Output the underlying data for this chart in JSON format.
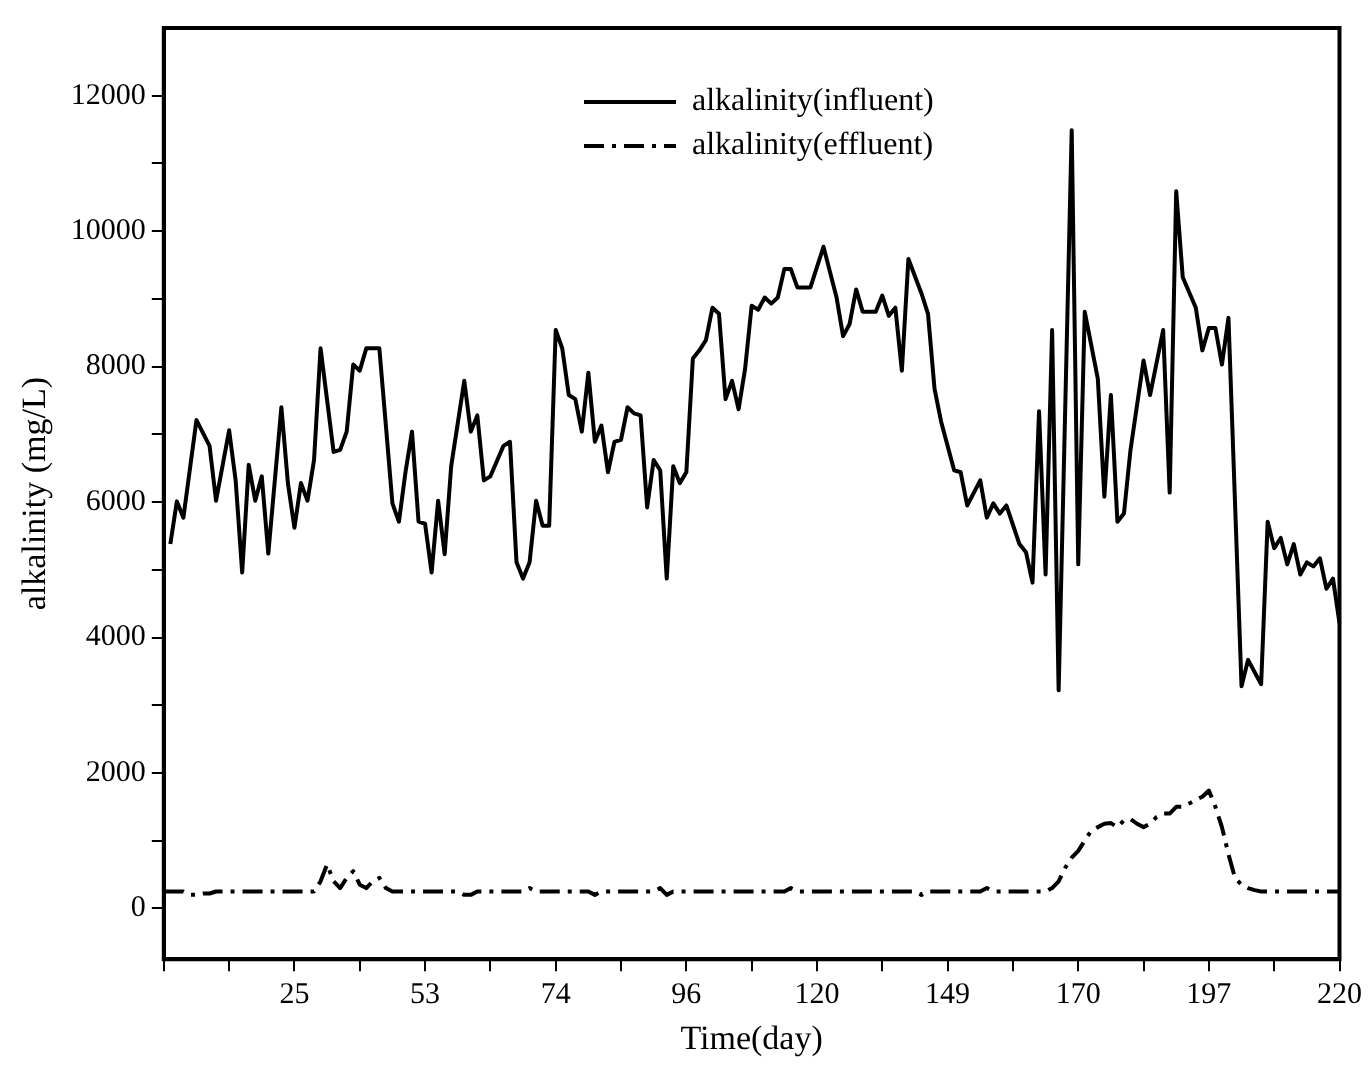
{
  "chart_data": {
    "type": "line",
    "xlabel": "Time(day)",
    "ylabel": "alkalinity (mg/L)",
    "categories": [
      null,
      null,
      null,
      null,
      null,
      null,
      null,
      null,
      null,
      null,
      null,
      null,
      null,
      null,
      null,
      null,
      null,
      null,
      null,
      null,
      "25",
      null,
      null,
      null,
      null,
      null,
      null,
      null,
      null,
      null,
      null,
      null,
      null,
      null,
      null,
      null,
      null,
      null,
      null,
      null,
      "53",
      null,
      null,
      null,
      null,
      null,
      null,
      null,
      null,
      null,
      null,
      null,
      null,
      null,
      null,
      null,
      null,
      null,
      null,
      null,
      "74",
      null,
      null,
      null,
      null,
      null,
      null,
      null,
      null,
      null,
      null,
      null,
      null,
      null,
      null,
      null,
      null,
      null,
      null,
      null,
      "96",
      null,
      null,
      null,
      null,
      null,
      null,
      null,
      null,
      null,
      null,
      null,
      null,
      null,
      null,
      null,
      null,
      null,
      null,
      null,
      "120",
      null,
      null,
      null,
      null,
      null,
      null,
      null,
      null,
      null,
      null,
      null,
      null,
      null,
      null,
      null,
      null,
      null,
      null,
      null,
      "149",
      null,
      null,
      null,
      null,
      null,
      null,
      null,
      null,
      null,
      null,
      null,
      null,
      null,
      null,
      null,
      null,
      null,
      null,
      null,
      "170",
      null,
      null,
      null,
      null,
      null,
      null,
      null,
      null,
      null,
      null,
      null,
      null,
      null,
      null,
      null,
      null,
      null,
      null,
      null,
      "197",
      null,
      null,
      null,
      null,
      null,
      null,
      null,
      null,
      null,
      null,
      null,
      null,
      null,
      null,
      null,
      null,
      null,
      null,
      null,
      "220"
    ],
    "series": [
      {
        "name": "alkalinity(influent)",
        "color": "#000000",
        "line_style": "solid",
        "values": [
          null,
          5380,
          6010,
          5770,
          null,
          7210,
          null,
          6830,
          6020,
          null,
          7060,
          6320,
          4960,
          6550,
          6020,
          6380,
          5240,
          null,
          7400,
          6280,
          5620,
          6280,
          6020,
          6620,
          8270,
          null,
          6740,
          6770,
          7040,
          8030,
          7940,
          8270,
          null,
          8270,
          7130,
          5980,
          5710,
          6440,
          7040,
          5710,
          5680,
          4960,
          6020,
          5230,
          6530,
          null,
          7790,
          7040,
          7280,
          6320,
          6380,
          null,
          6830,
          6890,
          5110,
          4870,
          5110,
          6020,
          5650,
          5650,
          8540,
          8270,
          7580,
          7520,
          7040,
          7910,
          6890,
          7130,
          6440,
          6890,
          6920,
          7400,
          7310,
          7280,
          5920,
          6620,
          6470,
          4870,
          6530,
          6280,
          6440,
          8120,
          8240,
          8390,
          8870,
          8780,
          7520,
          7790,
          7370,
          7970,
          8900,
          8840,
          9020,
          8930,
          9020,
          9440,
          9440,
          9170,
          null,
          9170,
          null,
          9770,
          null,
          9020,
          8450,
          8630,
          9140,
          8810,
          null,
          8810,
          9050,
          8750,
          8870,
          7940,
          9590,
          null,
          9080,
          8780,
          7670,
          7190,
          null,
          6470,
          6440,
          5950,
          null,
          6320,
          5770,
          5980,
          5830,
          5950,
          null,
          5380,
          5260,
          4810,
          7340,
          4930,
          8540,
          3220,
          null,
          11490,
          5080,
          8810,
          null,
          7820,
          6080,
          7580,
          5710,
          5830,
          6770,
          null,
          8090,
          7580,
          null,
          8540,
          6140,
          10590,
          9320,
          null,
          8870,
          8240,
          8570,
          8570,
          8030,
          8720,
          null,
          3280,
          3670,
          null,
          3310,
          5710,
          5320,
          5470,
          5080,
          5380,
          4930,
          5110,
          5050,
          5170,
          4720,
          4870,
          4210
        ]
      },
      {
        "name": "alkalinity(effluent)",
        "color": "#000000",
        "line_style": "dashdot",
        "values": [
          250,
          250,
          250,
          250,
          200,
          200,
          220,
          220,
          250,
          250,
          250,
          250,
          250,
          250,
          250,
          250,
          250,
          250,
          250,
          250,
          250,
          250,
          250,
          250,
          400,
          650,
          400,
          300,
          450,
          550,
          350,
          300,
          400,
          450,
          300,
          250,
          250,
          250,
          250,
          250,
          250,
          250,
          250,
          250,
          250,
          250,
          200,
          200,
          250,
          250,
          250,
          250,
          250,
          250,
          250,
          250,
          300,
          250,
          250,
          250,
          250,
          250,
          250,
          250,
          250,
          250,
          200,
          250,
          250,
          250,
          250,
          250,
          250,
          250,
          250,
          250,
          300,
          200,
          250,
          250,
          250,
          250,
          250,
          250,
          250,
          250,
          250,
          250,
          250,
          250,
          250,
          250,
          250,
          250,
          250,
          250,
          300,
          250,
          250,
          250,
          250,
          250,
          250,
          250,
          250,
          250,
          250,
          250,
          250,
          250,
          250,
          250,
          250,
          250,
          250,
          250,
          200,
          250,
          250,
          250,
          250,
          250,
          250,
          250,
          250,
          250,
          300,
          250,
          250,
          250,
          250,
          250,
          250,
          250,
          250,
          250,
          300,
          400,
          600,
          750,
          850,
          1000,
          1150,
          1200,
          1250,
          1260,
          1200,
          1300,
          1320,
          1250,
          1200,
          1250,
          1350,
          1400,
          1400,
          1500,
          1500,
          1550,
          1600,
          1650,
          1740,
          1500,
          1200,
          800,
          450,
          350,
          300,
          270,
          250,
          250,
          250,
          250,
          250,
          250,
          250,
          250,
          250,
          250,
          250,
          250,
          250
        ]
      }
    ],
    "ylim": [
      -750,
      13000
    ],
    "yticks": [
      0,
      {
        "value": 1000,
        "label": null
      },
      2000,
      {
        "value": 3000,
        "label": null
      },
      4000,
      {
        "value": 5000,
        "label": null
      },
      6000,
      {
        "value": 7000,
        "label": null
      },
      8000,
      {
        "value": 9000,
        "label": null
      },
      10000,
      {
        "value": 11000,
        "label": null
      },
      12000
    ],
    "grid": false,
    "legend": "top",
    "marker": "none"
  }
}
